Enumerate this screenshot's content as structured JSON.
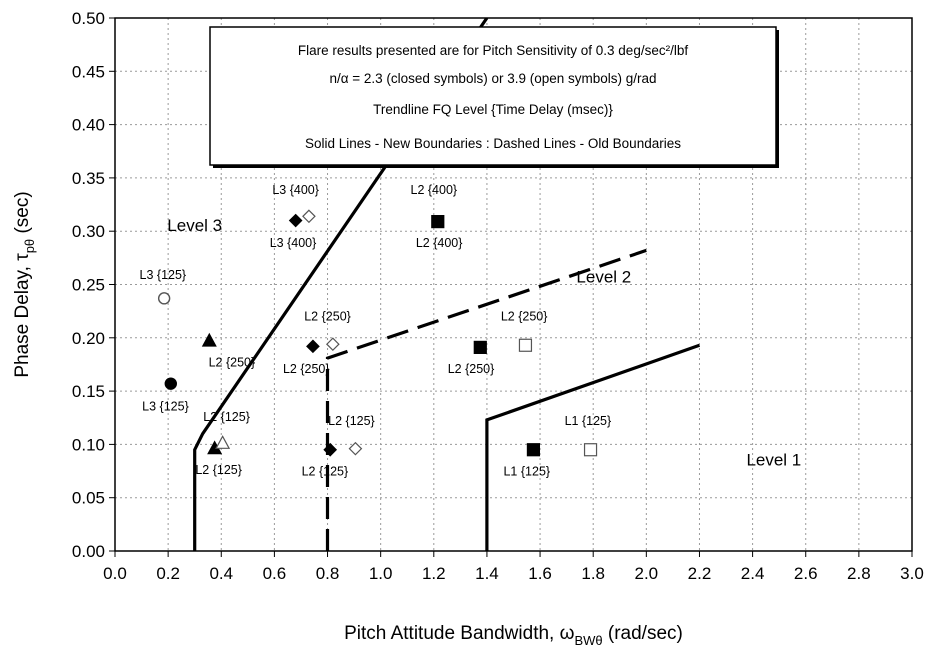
{
  "chart_data": {
    "type": "scatter",
    "xlabel": "Pitch Attitude Bandwidth, ωBWθ (rad/sec)",
    "xlabel_parts": {
      "main": "Pitch Attitude Bandwidth, ω",
      "sub": "BWθ",
      "tail": "(rad/sec)"
    },
    "ylabel": "Phase Delay, τpθ (sec)",
    "ylabel_parts": {
      "main": "Phase Delay, τ",
      "sub": "pθ",
      "tail": "(sec)"
    },
    "xlim": [
      0,
      3.0
    ],
    "ylim": [
      0,
      0.5
    ],
    "x_ticks": [
      "0.0",
      "0.2",
      "0.4",
      "0.6",
      "0.8",
      "1.0",
      "1.2",
      "1.4",
      "1.6",
      "1.8",
      "2.0",
      "2.2",
      "2.4",
      "2.6",
      "2.8",
      "3.0"
    ],
    "y_ticks": [
      "0.00",
      "0.05",
      "0.10",
      "0.15",
      "0.20",
      "0.25",
      "0.30",
      "0.35",
      "0.40",
      "0.45",
      "0.50"
    ],
    "grid": true,
    "legend_box": {
      "lines": [
        "Flare results presented are for Pitch Sensitivity of 0.3 deg/sec²/lbf",
        "n/α = 2.3 (closed symbols) or 3.9 (open symbols) g/rad",
        "Trendline FQ Level {Time Delay (msec)}",
        "Solid Lines - New Boundaries : Dashed Lines - Old Boundaries"
      ],
      "placement": "top-center"
    },
    "boundaries": [
      {
        "name": "new-level-1-2",
        "style": "solid",
        "points": [
          [
            1.4,
            0.0
          ],
          [
            1.4,
            0.123
          ],
          [
            2.2,
            0.193
          ]
        ]
      },
      {
        "name": "new-level-2-3",
        "style": "solid",
        "points": [
          [
            0.3,
            0.0
          ],
          [
            0.3,
            0.095
          ],
          [
            0.33,
            0.11
          ],
          [
            1.4,
            0.5
          ]
        ]
      },
      {
        "name": "old-level-2-3",
        "style": "dashed",
        "points": [
          [
            0.8,
            0.0
          ],
          [
            0.8,
            0.181
          ],
          [
            2.0,
            0.282
          ]
        ]
      }
    ],
    "regions": [
      {
        "label": "Level 3",
        "x": 0.3,
        "y": 0.3
      },
      {
        "label": "Level 2",
        "x": 1.84,
        "y": 0.252
      },
      {
        "label": "Level 1",
        "x": 2.48,
        "y": 0.08
      }
    ],
    "points": [
      {
        "x": 0.185,
        "y": 0.237,
        "marker": "circle",
        "filled": false,
        "label": "L3 {125}",
        "lx": 0.18,
        "ly": 0.255
      },
      {
        "x": 0.21,
        "y": 0.157,
        "marker": "circle",
        "filled": true,
        "label": "L3 {125}",
        "lx": 0.19,
        "ly": 0.132
      },
      {
        "x": 0.355,
        "y": 0.197,
        "marker": "triangle",
        "filled": true,
        "label": "L2 {250}",
        "lx": 0.44,
        "ly": 0.173
      },
      {
        "x": 0.375,
        "y": 0.096,
        "marker": "triangle",
        "filled": true,
        "label": "L2 {125}",
        "lx": 0.39,
        "ly": 0.072
      },
      {
        "x": 0.405,
        "y": 0.101,
        "marker": "triangle",
        "filled": false,
        "label": "L2 {125}",
        "lx": 0.42,
        "ly": 0.122
      },
      {
        "x": 0.68,
        "y": 0.31,
        "marker": "diamond",
        "filled": true,
        "label": "L3 {400}",
        "lx": 0.67,
        "ly": 0.285
      },
      {
        "x": 0.73,
        "y": 0.314,
        "marker": "diamond",
        "filled": false,
        "label": "L3 {400}",
        "lx": 0.68,
        "ly": 0.335
      },
      {
        "x": 0.745,
        "y": 0.192,
        "marker": "diamond",
        "filled": true,
        "label": "L2 {250}",
        "lx": 0.72,
        "ly": 0.167
      },
      {
        "x": 0.82,
        "y": 0.194,
        "marker": "diamond",
        "filled": false,
        "label": "L2 {250}",
        "lx": 0.8,
        "ly": 0.216
      },
      {
        "x": 0.81,
        "y": 0.095,
        "marker": "diamond",
        "filled": true,
        "label": "L2 {125}",
        "lx": 0.79,
        "ly": 0.071
      },
      {
        "x": 0.905,
        "y": 0.096,
        "marker": "diamond",
        "filled": false,
        "label": "L2 {125}",
        "lx": 0.89,
        "ly": 0.118
      },
      {
        "x": 1.215,
        "y": 0.309,
        "marker": "square",
        "filled": true,
        "label": "L2 {400}",
        "lx": 1.22,
        "ly": 0.285
      },
      {
        "x": 1.22,
        "y": 0.309,
        "marker": "none",
        "filled": true,
        "label": "L2 {400}",
        "lx": 1.2,
        "ly": 0.335
      },
      {
        "x": 1.375,
        "y": 0.191,
        "marker": "square",
        "filled": true,
        "label": "L2 {250}",
        "lx": 1.34,
        "ly": 0.167
      },
      {
        "x": 1.545,
        "y": 0.193,
        "marker": "square",
        "filled": false,
        "label": "L2 {250}",
        "lx": 1.54,
        "ly": 0.216
      },
      {
        "x": 1.575,
        "y": 0.095,
        "marker": "square",
        "filled": true,
        "label": "L1 {125}",
        "lx": 1.55,
        "ly": 0.071
      },
      {
        "x": 1.79,
        "y": 0.095,
        "marker": "square",
        "filled": false,
        "label": "L1 {125}",
        "lx": 1.78,
        "ly": 0.118
      }
    ]
  }
}
